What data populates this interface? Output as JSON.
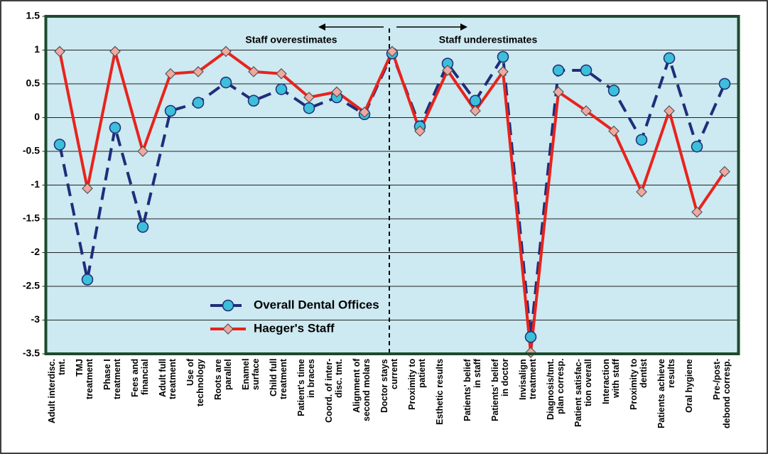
{
  "chart_data": {
    "type": "line",
    "categories": [
      "Adult interdisc.\ntmt.",
      "TMJ\ntreatment",
      "Phase I\ntreatment",
      "Fees and\nfinancial",
      "Adult full\ntreatment",
      "Use of\ntechnology",
      "Roots are\nparallel",
      "Enamel\nsurface",
      "Child full\ntreatment",
      "Patient's time\nin braces",
      "Coord. of inter-\ndisc. tmt.",
      "Alignment of\nsecond molars",
      "Doctor stays\ncurrent",
      "Proximity to\npatient",
      "Esthetic results",
      "Patients' belief\nin staff",
      "Patients' belief\nin doctor",
      "Invisalign\ntreatment",
      "Diagnosis/tmt.\nplan corresp.",
      "Patient satisfac-\ntion overall",
      "Interaction\nwith staff",
      "Proximity to\ndentist",
      "Patients achieve\nresults",
      "Oral hygiene",
      "Pre-/post-\ndebond corresp."
    ],
    "series": [
      {
        "name": "Overall Dental Offices",
        "color": "#1f2d7a",
        "marker_color": "#3cbfd8",
        "values": [
          -0.4,
          -2.4,
          -0.15,
          -1.62,
          0.1,
          0.22,
          0.52,
          0.25,
          0.42,
          0.14,
          0.3,
          0.05,
          0.95,
          -0.13,
          0.8,
          0.25,
          0.9,
          -3.25,
          0.7,
          0.7,
          0.4,
          -0.33,
          0.88,
          -0.43,
          0.5
        ]
      },
      {
        "name": "Haeger's Staff",
        "color": "#e8231c",
        "marker_color": "#f0a8a0",
        "values": [
          0.98,
          -1.05,
          0.98,
          -0.5,
          0.65,
          0.68,
          0.98,
          0.68,
          0.65,
          0.3,
          0.38,
          0.08,
          0.98,
          -0.2,
          0.7,
          0.1,
          0.68,
          -3.48,
          0.38,
          0.1,
          -0.2,
          -1.1,
          0.1,
          -1.4,
          -0.8
        ]
      }
    ],
    "ylim": [
      -3.5,
      1.5
    ],
    "yticks": [
      -3.5,
      -3,
      -2.5,
      -2,
      -1.5,
      -1,
      -0.5,
      0,
      0.5,
      1,
      1.5
    ],
    "grid": true,
    "annotations": [
      "Staff overestimates",
      "Staff underestimates"
    ]
  }
}
